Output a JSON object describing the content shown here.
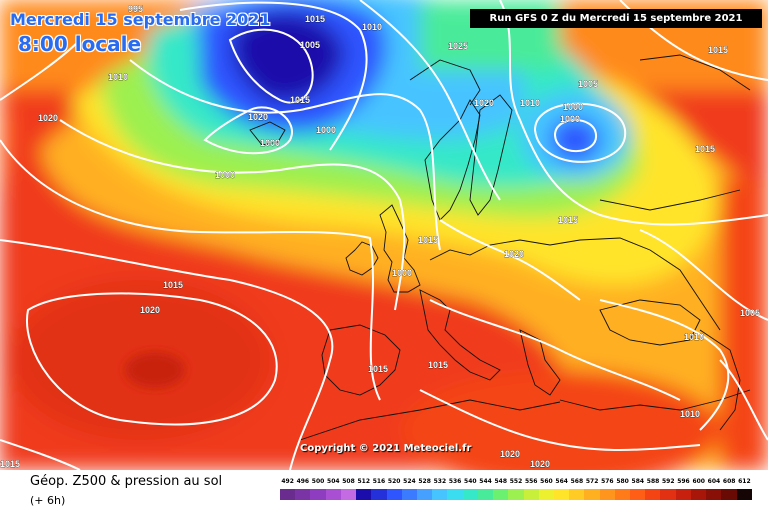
{
  "title": {
    "date": "Mercredi 15 septembre 2021",
    "time": "8:00 locale"
  },
  "run_label": "Run GFS 0 Z du Mercredi 15 septembre 2021",
  "copyright": "Copyright © 2021 Meteociel.fr",
  "footer": {
    "line1": "Géop. Z500 & pression au sol",
    "line2": "(+ 6h)"
  },
  "legend": {
    "values": [
      "492",
      "496",
      "500",
      "504",
      "508",
      "512",
      "516",
      "520",
      "524",
      "528",
      "532",
      "536",
      "540",
      "544",
      "548",
      "552",
      "556",
      "560",
      "564",
      "568",
      "572",
      "576",
      "580",
      "584",
      "588",
      "592",
      "596",
      "600",
      "604",
      "608",
      "612"
    ],
    "colors": [
      "#6a2c8e",
      "#7b34a6",
      "#8f3dc0",
      "#a94fd4",
      "#c46ae2",
      "#1a0dab",
      "#2430d9",
      "#2f55ff",
      "#3a7bff",
      "#45a0ff",
      "#46c4ff",
      "#3adcf0",
      "#35e8c8",
      "#48eb9a",
      "#6cf070",
      "#9cf050",
      "#c8f03a",
      "#ecf02e",
      "#ffe42a",
      "#ffcb24",
      "#ffb020",
      "#ff951c",
      "#ff7a18",
      "#ff5e16",
      "#f44414",
      "#e23012",
      "#c8200e",
      "#a8160a",
      "#881006",
      "#6a0a04",
      "#150505"
    ]
  },
  "isobars": [
    "1015",
    "1010",
    "995",
    "1010",
    "1020",
    "1005",
    "1025",
    "1020",
    "1000",
    "1015",
    "1000",
    "1000",
    "1020",
    "1010",
    "1000",
    "1000",
    "1005",
    "1015",
    "1015",
    "1015",
    "1020",
    "1000",
    "1015",
    "1020",
    "1015",
    "1015",
    "1005",
    "1010",
    "1010",
    "1015",
    "1020",
    "1020",
    "1015"
  ]
}
